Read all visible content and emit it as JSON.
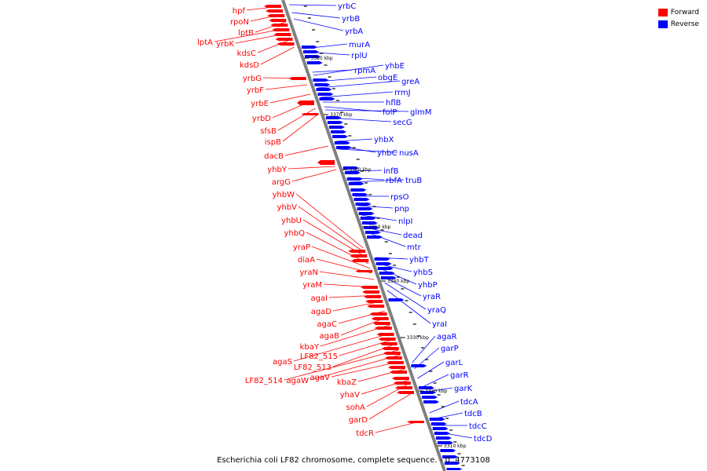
{
  "colors": {
    "forward": "#ff0000",
    "reverse": "#0000ff",
    "backbone": "#808080"
  },
  "legend": {
    "forward_label": "Forward",
    "reverse_label": "Reverse"
  },
  "footer": "Escherichia coli LF82 chromosome, complete sequence. - 0..4773108",
  "ticks": [
    "3380 kbp",
    "3370 kbp",
    "3360 kbp",
    "3350 kbp",
    "3340 kbp",
    "3330 kbp",
    "3320 kbp",
    "3310 kbp"
  ],
  "forward_genes": [
    "hpf",
    "rpoN",
    "lptB",
    "lptA",
    "yrbK",
    "kdsC",
    "kdsD",
    "yrbG",
    "yrbF",
    "yrbE",
    "yrbD",
    "sfsB",
    "ispB",
    "dacB",
    "yhbY",
    "argG",
    "yhbW",
    "yhbV",
    "yhbU",
    "yhbQ",
    "yraP",
    "diaA",
    "yraN",
    "yraM",
    "agaI",
    "agaD",
    "agaC",
    "agaB",
    "kbaY",
    "agaS",
    "LF82_515",
    "LF82_513",
    "LF82_514",
    "agaW",
    "agaV",
    "kbaZ",
    "yhaV",
    "sohA",
    "garD",
    "tdcR"
  ],
  "reverse_genes": [
    "yrbC",
    "yrbB",
    "yrbA",
    "murA",
    "rplU",
    "rpmA",
    "yhbE",
    "obgE",
    "greA",
    "rrmJ",
    "hflB",
    "folP",
    "glmM",
    "secG",
    "yhbX",
    "yhbC",
    "nusA",
    "infB",
    "rbfA",
    "truB",
    "rpsO",
    "pnp",
    "nlpI",
    "dead",
    "mtr",
    "yhbT",
    "yhbS",
    "yhbP",
    "yraR",
    "yraQ",
    "yraI",
    "agaR",
    "garP",
    "garL",
    "garR",
    "garK",
    "tdcA",
    "tdcB",
    "tdcC",
    "tdcD"
  ]
}
